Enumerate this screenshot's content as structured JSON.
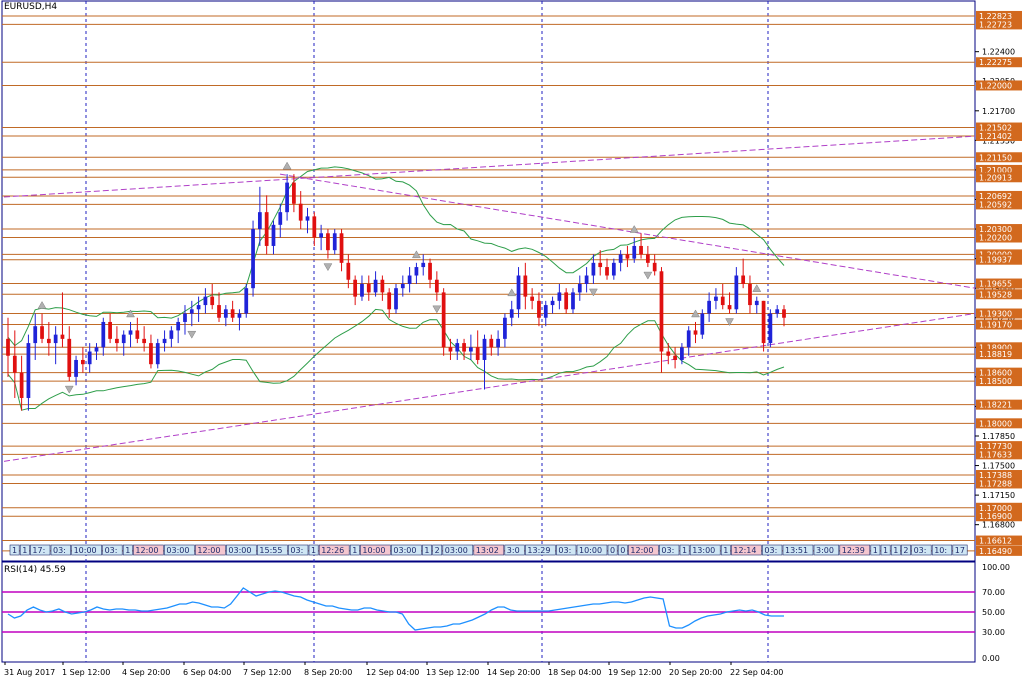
{
  "window": {
    "symbol": "EURUSD,H4",
    "rsi_label": "RSI(14) 45.59"
  },
  "colors": {
    "bull": "#1f23d8",
    "bear": "#e01010",
    "level_line": "#c06a26",
    "level_tag": "#d2691e",
    "trend_line": "#b040c8",
    "band": "#2e9e4a",
    "grid_vline": "#2020c0",
    "rsi_line": "#1e90ff",
    "rsi_band": "#c000c0",
    "text_chip": "#1f2b6b"
  },
  "price_axis": {
    "ticks": [
      "1.22400",
      "1.22050",
      "1.21700",
      "1.21350",
      "1.21000",
      "1.20650",
      "1.20300",
      "1.19950",
      "1.19600",
      "1.19250",
      "1.18900",
      "1.18550",
      "1.18200",
      "1.17850",
      "1.17500",
      "1.17150",
      "1.16800"
    ],
    "levels": [
      {
        "price": "1.22823"
      },
      {
        "price": "1.22723"
      },
      {
        "price": "1.22275"
      },
      {
        "price": "1.22000"
      },
      {
        "price": "1.21502"
      },
      {
        "price": "1.21402"
      },
      {
        "price": "1.21150"
      },
      {
        "price": "1.21000"
      },
      {
        "price": "1.20913"
      },
      {
        "price": "1.20692"
      },
      {
        "price": "1.20592"
      },
      {
        "price": "1.20300"
      },
      {
        "price": "1.20200"
      },
      {
        "price": "1.20000"
      },
      {
        "price": "1.19937"
      },
      {
        "price": "1.19655"
      },
      {
        "price": "1.19528"
      },
      {
        "price": "1.19300"
      },
      {
        "price": "1.19170"
      },
      {
        "price": "1.18900"
      },
      {
        "price": "1.18819"
      },
      {
        "price": "1.18600"
      },
      {
        "price": "1.18500"
      },
      {
        "price": "1.18221"
      },
      {
        "price": "1.18000"
      },
      {
        "price": "1.17730"
      },
      {
        "price": "1.17633"
      },
      {
        "price": "1.17388"
      },
      {
        "price": "1.17288"
      },
      {
        "price": "1.17000"
      },
      {
        "price": "1.16900"
      },
      {
        "price": "1.16612"
      },
      {
        "price": "1.16490"
      }
    ]
  },
  "rsi_axis": {
    "ticks": [
      "100.00",
      "70.00",
      "50.00",
      "30.00",
      "0.00"
    ]
  },
  "time_axis": {
    "labels": [
      "31 Aug 2017",
      "1 Sep 12:00",
      "4 Sep 20:00",
      "6 Sep 04:00",
      "7 Sep 12:00",
      "8 Sep 20:00",
      "12 Sep 04:00",
      "13 Sep 12:00",
      "14 Sep 20:00",
      "18 Sep 04:00",
      "19 Sep 12:00",
      "20 Sep 20:00",
      "22 Sep 04:00"
    ]
  },
  "time_chips": [
    {
      "text": "1"
    },
    {
      "text": "1"
    },
    {
      "text": "17:"
    },
    {
      "text": "03:"
    },
    {
      "text": "10:00"
    },
    {
      "text": "03:"
    },
    {
      "text": "1"
    },
    {
      "text": "12:00"
    },
    {
      "text": "03:00"
    },
    {
      "text": "12:00"
    },
    {
      "text": "03:00"
    },
    {
      "text": "15:55"
    },
    {
      "text": "03:"
    },
    {
      "text": "1"
    },
    {
      "text": "12:26"
    },
    {
      "text": "1"
    },
    {
      "text": "10:00"
    },
    {
      "text": "03:00"
    },
    {
      "text": "1"
    },
    {
      "text": "2"
    },
    {
      "text": "03:00"
    },
    {
      "text": "13:02"
    },
    {
      "text": "3:0"
    },
    {
      "text": "13:29"
    },
    {
      "text": "03:"
    },
    {
      "text": "10:00"
    },
    {
      "text": "0"
    },
    {
      "text": "0"
    },
    {
      "text": "12:00"
    },
    {
      "text": "03:"
    },
    {
      "text": "1"
    },
    {
      "text": "13:00"
    },
    {
      "text": "1"
    },
    {
      "text": "12:14"
    },
    {
      "text": "03:"
    },
    {
      "text": "13:51"
    },
    {
      "text": "3:00"
    },
    {
      "text": "12:39"
    },
    {
      "text": "1"
    },
    {
      "text": "1"
    },
    {
      "text": "1"
    },
    {
      "text": "2"
    },
    {
      "text": "03:"
    },
    {
      "text": "10:"
    },
    {
      "text": "19:40"
    },
    {
      "text": "17"
    },
    {
      "text": "2"
    },
    {
      "text": "03"
    },
    {
      "text": "17:30"
    },
    {
      "text": "18:"
    },
    {
      "text": "02"
    }
  ],
  "chart_data": {
    "type": "candlestick",
    "title": "EURUSD,H4",
    "ylim": [
      1.1637,
      1.23
    ],
    "candles": [
      {
        "o": 1.19,
        "h": 1.1925,
        "l": 1.1855,
        "c": 1.188
      },
      {
        "o": 1.188,
        "h": 1.191,
        "l": 1.183,
        "c": 1.186
      },
      {
        "o": 1.186,
        "h": 1.188,
        "l": 1.1815,
        "c": 1.183
      },
      {
        "o": 1.183,
        "h": 1.1905,
        "l": 1.1815,
        "c": 1.1895
      },
      {
        "o": 1.1895,
        "h": 1.193,
        "l": 1.1875,
        "c": 1.1915
      },
      {
        "o": 1.1915,
        "h": 1.193,
        "l": 1.1895,
        "c": 1.19
      },
      {
        "o": 1.19,
        "h": 1.192,
        "l": 1.188,
        "c": 1.1895
      },
      {
        "o": 1.1895,
        "h": 1.1915,
        "l": 1.187,
        "c": 1.1905
      },
      {
        "o": 1.1905,
        "h": 1.1955,
        "l": 1.189,
        "c": 1.19
      },
      {
        "o": 1.19,
        "h": 1.1915,
        "l": 1.185,
        "c": 1.1855
      },
      {
        "o": 1.1855,
        "h": 1.188,
        "l": 1.1845,
        "c": 1.1875
      },
      {
        "o": 1.1875,
        "h": 1.189,
        "l": 1.186,
        "c": 1.187
      },
      {
        "o": 1.187,
        "h": 1.1895,
        "l": 1.186,
        "c": 1.1885
      },
      {
        "o": 1.1885,
        "h": 1.1895,
        "l": 1.1875,
        "c": 1.189
      },
      {
        "o": 1.189,
        "h": 1.1925,
        "l": 1.188,
        "c": 1.192
      },
      {
        "o": 1.192,
        "h": 1.193,
        "l": 1.1895,
        "c": 1.19
      },
      {
        "o": 1.19,
        "h": 1.1915,
        "l": 1.1885,
        "c": 1.1895
      },
      {
        "o": 1.1895,
        "h": 1.191,
        "l": 1.188,
        "c": 1.1905
      },
      {
        "o": 1.1905,
        "h": 1.192,
        "l": 1.189,
        "c": 1.191
      },
      {
        "o": 1.191,
        "h": 1.1925,
        "l": 1.1895,
        "c": 1.19
      },
      {
        "o": 1.19,
        "h": 1.1915,
        "l": 1.1885,
        "c": 1.1895
      },
      {
        "o": 1.1895,
        "h": 1.1905,
        "l": 1.1865,
        "c": 1.187
      },
      {
        "o": 1.187,
        "h": 1.19,
        "l": 1.1865,
        "c": 1.1895
      },
      {
        "o": 1.1895,
        "h": 1.191,
        "l": 1.1885,
        "c": 1.19
      },
      {
        "o": 1.19,
        "h": 1.1915,
        "l": 1.189,
        "c": 1.191
      },
      {
        "o": 1.191,
        "h": 1.1925,
        "l": 1.1895,
        "c": 1.192
      },
      {
        "o": 1.192,
        "h": 1.194,
        "l": 1.1905,
        "c": 1.193
      },
      {
        "o": 1.193,
        "h": 1.1945,
        "l": 1.1915,
        "c": 1.1935
      },
      {
        "o": 1.1935,
        "h": 1.195,
        "l": 1.192,
        "c": 1.194
      },
      {
        "o": 1.194,
        "h": 1.196,
        "l": 1.193,
        "c": 1.195
      },
      {
        "o": 1.195,
        "h": 1.1965,
        "l": 1.1935,
        "c": 1.194
      },
      {
        "o": 1.194,
        "h": 1.1955,
        "l": 1.192,
        "c": 1.1925
      },
      {
        "o": 1.1925,
        "h": 1.194,
        "l": 1.1915,
        "c": 1.1935
      },
      {
        "o": 1.1935,
        "h": 1.1945,
        "l": 1.192,
        "c": 1.1925
      },
      {
        "o": 1.1925,
        "h": 1.1935,
        "l": 1.191,
        "c": 1.193
      },
      {
        "o": 1.193,
        "h": 1.1965,
        "l": 1.1925,
        "c": 1.196
      },
      {
        "o": 1.196,
        "h": 1.204,
        "l": 1.195,
        "c": 1.203
      },
      {
        "o": 1.203,
        "h": 1.208,
        "l": 1.201,
        "c": 1.205
      },
      {
        "o": 1.205,
        "h": 1.207,
        "l": 1.2,
        "c": 1.201
      },
      {
        "o": 1.201,
        "h": 1.204,
        "l": 1.2,
        "c": 1.2035
      },
      {
        "o": 1.2035,
        "h": 1.206,
        "l": 1.202,
        "c": 1.205
      },
      {
        "o": 1.205,
        "h": 1.2095,
        "l": 1.204,
        "c": 1.2085
      },
      {
        "o": 1.2085,
        "h": 1.2095,
        "l": 1.205,
        "c": 1.206
      },
      {
        "o": 1.206,
        "h": 1.2075,
        "l": 1.203,
        "c": 1.204
      },
      {
        "o": 1.204,
        "h": 1.2055,
        "l": 1.2025,
        "c": 1.2045
      },
      {
        "o": 1.2045,
        "h": 1.205,
        "l": 1.201,
        "c": 1.202
      },
      {
        "o": 1.202,
        "h": 1.2035,
        "l": 1.2005,
        "c": 1.2025
      },
      {
        "o": 1.2025,
        "h": 1.203,
        "l": 1.1995,
        "c": 1.2005
      },
      {
        "o": 1.2005,
        "h": 1.203,
        "l": 1.2,
        "c": 1.2025
      },
      {
        "o": 1.2025,
        "h": 1.203,
        "l": 1.198,
        "c": 1.199
      },
      {
        "o": 1.199,
        "h": 1.2,
        "l": 1.196,
        "c": 1.197
      },
      {
        "o": 1.197,
        "h": 1.1975,
        "l": 1.194,
        "c": 1.195
      },
      {
        "o": 1.195,
        "h": 1.1975,
        "l": 1.1945,
        "c": 1.1965
      },
      {
        "o": 1.1965,
        "h": 1.1975,
        "l": 1.1945,
        "c": 1.1955
      },
      {
        "o": 1.1955,
        "h": 1.198,
        "l": 1.195,
        "c": 1.197
      },
      {
        "o": 1.197,
        "h": 1.1975,
        "l": 1.1945,
        "c": 1.1955
      },
      {
        "o": 1.1955,
        "h": 1.196,
        "l": 1.1925,
        "c": 1.1935
      },
      {
        "o": 1.1935,
        "h": 1.1965,
        "l": 1.193,
        "c": 1.196
      },
      {
        "o": 1.196,
        "h": 1.1975,
        "l": 1.195,
        "c": 1.1965
      },
      {
        "o": 1.1965,
        "h": 1.1985,
        "l": 1.1955,
        "c": 1.1975
      },
      {
        "o": 1.1975,
        "h": 1.199,
        "l": 1.1965,
        "c": 1.1985
      },
      {
        "o": 1.1985,
        "h": 1.2,
        "l": 1.1975,
        "c": 1.199
      },
      {
        "o": 1.199,
        "h": 1.1995,
        "l": 1.196,
        "c": 1.197
      },
      {
        "o": 1.197,
        "h": 1.198,
        "l": 1.1945,
        "c": 1.1955
      },
      {
        "o": 1.1955,
        "h": 1.196,
        "l": 1.188,
        "c": 1.189
      },
      {
        "o": 1.189,
        "h": 1.19,
        "l": 1.1875,
        "c": 1.1885
      },
      {
        "o": 1.1885,
        "h": 1.19,
        "l": 1.1875,
        "c": 1.1895
      },
      {
        "o": 1.1895,
        "h": 1.19,
        "l": 1.1875,
        "c": 1.1885
      },
      {
        "o": 1.1885,
        "h": 1.1905,
        "l": 1.1875,
        "c": 1.189
      },
      {
        "o": 1.189,
        "h": 1.191,
        "l": 1.187,
        "c": 1.1875
      },
      {
        "o": 1.1875,
        "h": 1.1905,
        "l": 1.184,
        "c": 1.19
      },
      {
        "o": 1.19,
        "h": 1.1905,
        "l": 1.188,
        "c": 1.189
      },
      {
        "o": 1.189,
        "h": 1.191,
        "l": 1.188,
        "c": 1.19
      },
      {
        "o": 1.19,
        "h": 1.193,
        "l": 1.189,
        "c": 1.1925
      },
      {
        "o": 1.1925,
        "h": 1.1945,
        "l": 1.1915,
        "c": 1.1935
      },
      {
        "o": 1.1935,
        "h": 1.1985,
        "l": 1.1925,
        "c": 1.1975
      },
      {
        "o": 1.1975,
        "h": 1.199,
        "l": 1.1935,
        "c": 1.195
      },
      {
        "o": 1.195,
        "h": 1.196,
        "l": 1.1935,
        "c": 1.1945
      },
      {
        "o": 1.1945,
        "h": 1.1955,
        "l": 1.1915,
        "c": 1.1925
      },
      {
        "o": 1.1925,
        "h": 1.1945,
        "l": 1.1915,
        "c": 1.194
      },
      {
        "o": 1.194,
        "h": 1.195,
        "l": 1.193,
        "c": 1.1945
      },
      {
        "o": 1.1945,
        "h": 1.1965,
        "l": 1.1935,
        "c": 1.1955
      },
      {
        "o": 1.1955,
        "h": 1.196,
        "l": 1.193,
        "c": 1.1935
      },
      {
        "o": 1.1935,
        "h": 1.196,
        "l": 1.193,
        "c": 1.1955
      },
      {
        "o": 1.1955,
        "h": 1.1975,
        "l": 1.1945,
        "c": 1.1965
      },
      {
        "o": 1.1965,
        "h": 1.1985,
        "l": 1.1955,
        "c": 1.1975
      },
      {
        "o": 1.1975,
        "h": 1.2,
        "l": 1.1965,
        "c": 1.199
      },
      {
        "o": 1.199,
        "h": 1.2005,
        "l": 1.1975,
        "c": 1.1985
      },
      {
        "o": 1.1985,
        "h": 1.1995,
        "l": 1.197,
        "c": 1.1975
      },
      {
        "o": 1.1975,
        "h": 1.1995,
        "l": 1.197,
        "c": 1.199
      },
      {
        "o": 1.199,
        "h": 1.2005,
        "l": 1.198,
        "c": 1.2
      },
      {
        "o": 1.2,
        "h": 1.201,
        "l": 1.1985,
        "c": 1.1995
      },
      {
        "o": 1.1995,
        "h": 1.202,
        "l": 1.199,
        "c": 1.201
      },
      {
        "o": 1.201,
        "h": 1.2025,
        "l": 1.1995,
        "c": 1.2
      },
      {
        "o": 1.2,
        "h": 1.201,
        "l": 1.1985,
        "c": 1.199
      },
      {
        "o": 1.199,
        "h": 1.2,
        "l": 1.1975,
        "c": 1.198
      },
      {
        "o": 1.198,
        "h": 1.1985,
        "l": 1.186,
        "c": 1.1885
      },
      {
        "o": 1.1885,
        "h": 1.1895,
        "l": 1.187,
        "c": 1.188
      },
      {
        "o": 1.188,
        "h": 1.189,
        "l": 1.1865,
        "c": 1.1875
      },
      {
        "o": 1.1875,
        "h": 1.1895,
        "l": 1.187,
        "c": 1.189
      },
      {
        "o": 1.189,
        "h": 1.1915,
        "l": 1.188,
        "c": 1.191
      },
      {
        "o": 1.191,
        "h": 1.192,
        "l": 1.1895,
        "c": 1.1905
      },
      {
        "o": 1.1905,
        "h": 1.1935,
        "l": 1.19,
        "c": 1.193
      },
      {
        "o": 1.193,
        "h": 1.1955,
        "l": 1.192,
        "c": 1.1945
      },
      {
        "o": 1.1945,
        "h": 1.196,
        "l": 1.1935,
        "c": 1.195
      },
      {
        "o": 1.195,
        "h": 1.1965,
        "l": 1.1935,
        "c": 1.194
      },
      {
        "o": 1.194,
        "h": 1.1955,
        "l": 1.193,
        "c": 1.1935
      },
      {
        "o": 1.1935,
        "h": 1.1985,
        "l": 1.193,
        "c": 1.1975
      },
      {
        "o": 1.1975,
        "h": 1.1995,
        "l": 1.196,
        "c": 1.1965
      },
      {
        "o": 1.1965,
        "h": 1.1975,
        "l": 1.193,
        "c": 1.194
      },
      {
        "o": 1.194,
        "h": 1.195,
        "l": 1.193,
        "c": 1.1945
      },
      {
        "o": 1.1945,
        "h": 1.1945,
        "l": 1.1885,
        "c": 1.1895
      },
      {
        "o": 1.1895,
        "h": 1.1935,
        "l": 1.189,
        "c": 1.193
      },
      {
        "o": 1.193,
        "h": 1.194,
        "l": 1.1925,
        "c": 1.1935
      },
      {
        "o": 1.1935,
        "h": 1.194,
        "l": 1.1915,
        "c": 1.1925
      }
    ],
    "rsi": [
      48,
      44,
      46,
      52,
      55,
      52,
      50,
      51,
      53,
      50,
      48,
      49,
      50,
      52,
      55,
      53,
      52,
      53,
      53,
      52,
      52,
      51,
      51,
      52,
      53,
      54,
      56,
      58,
      58,
      60,
      59,
      57,
      55,
      55,
      54,
      58,
      66,
      74,
      70,
      66,
      68,
      70,
      71,
      70,
      68,
      66,
      65,
      62,
      60,
      58,
      56,
      56,
      54,
      53,
      52,
      52,
      54,
      54,
      52,
      51,
      50,
      50,
      48,
      38,
      32,
      33,
      34,
      35,
      35,
      36,
      38,
      38,
      40,
      42,
      45,
      48,
      52,
      55,
      55,
      52,
      51,
      51,
      51,
      51,
      51,
      51,
      52,
      53,
      54,
      55,
      56,
      57,
      58,
      58,
      59,
      60,
      60,
      59,
      60,
      62,
      64,
      65,
      64,
      63,
      36,
      34,
      34,
      37,
      41,
      44,
      46,
      47,
      48,
      50,
      51,
      52,
      51,
      52,
      50,
      47,
      46,
      46,
      46
    ],
    "rsi_bands": [
      70,
      50,
      30
    ],
    "rsi_ylim": [
      0,
      100
    ]
  }
}
